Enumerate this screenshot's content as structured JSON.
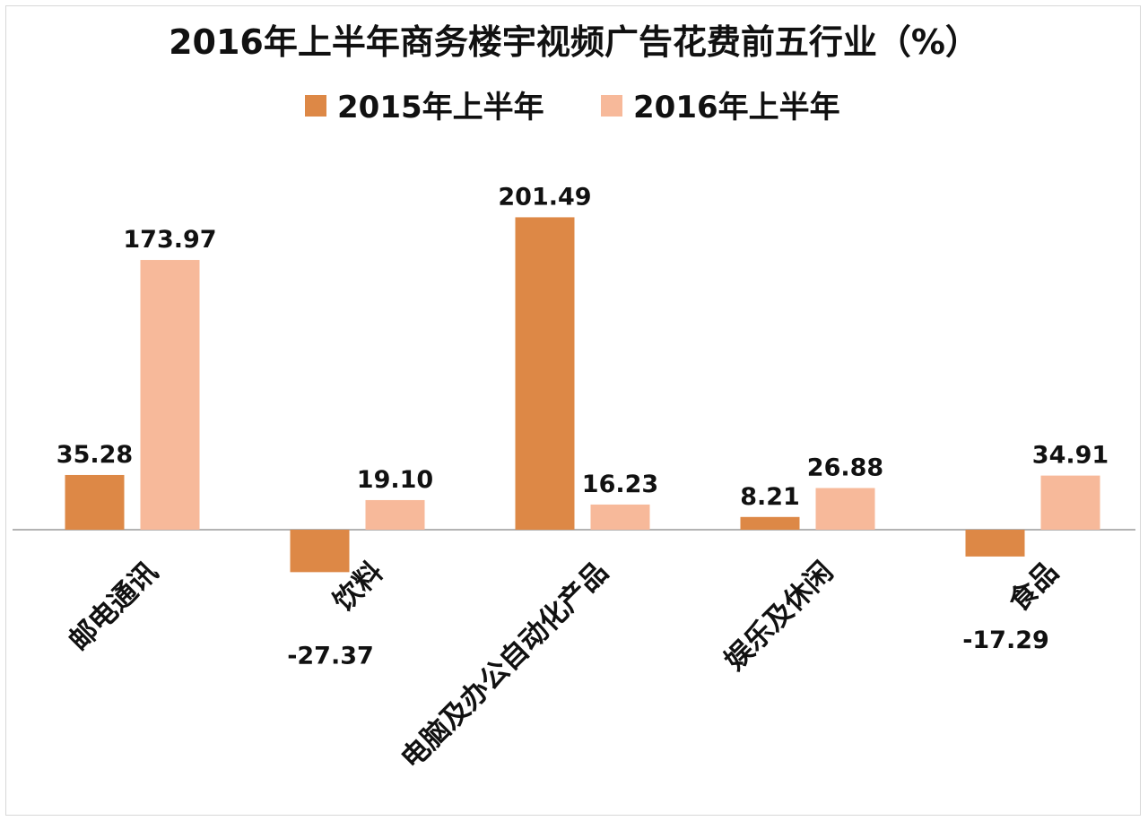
{
  "chart_data": {
    "type": "bar",
    "title": "2016年上半年商务楼宇视频广告花费前五行业（%）",
    "categories": [
      "邮电通讯",
      "饮料",
      "电脑及办公自动化产品",
      "娱乐及休闲",
      "食品"
    ],
    "series": [
      {
        "name": "2015年上半年",
        "color": "#dd8846",
        "values": [
          35.28,
          -27.37,
          201.49,
          8.21,
          -17.29
        ],
        "labels": [
          "35.28",
          "-27.37",
          "201.49",
          "8.21",
          "-17.29"
        ]
      },
      {
        "name": "2016年上半年",
        "color": "#f7b99a",
        "values": [
          173.97,
          19.1,
          16.23,
          26.88,
          34.91
        ],
        "labels": [
          "173.97",
          "19.10",
          "16.23",
          "26.88",
          "34.91"
        ]
      }
    ],
    "xlabel": "",
    "ylabel": "",
    "ylim": [
      -30,
      210
    ],
    "grid": false,
    "legend": "top-center",
    "axis_line_color": "#9a9a9a"
  }
}
